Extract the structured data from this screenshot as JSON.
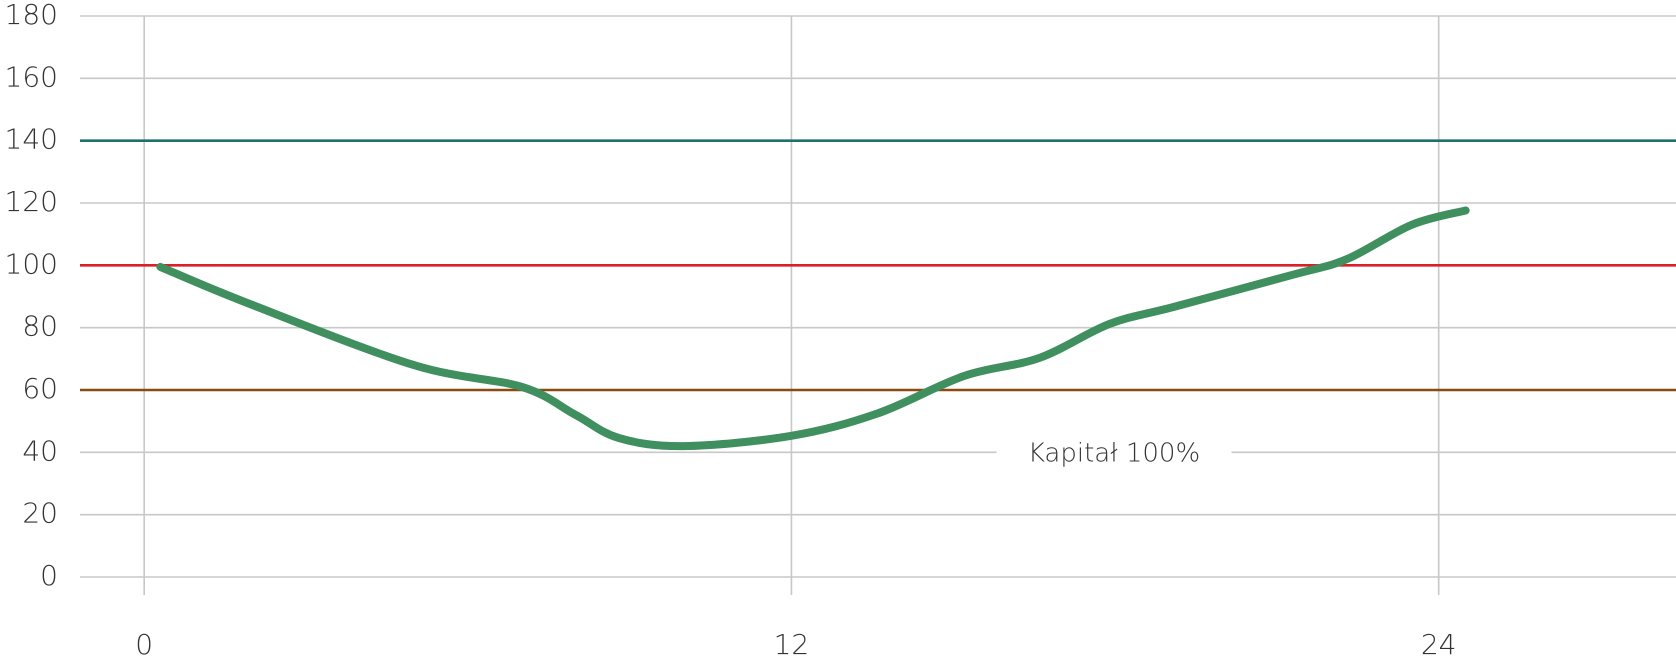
{
  "chart_data": {
    "type": "line",
    "x": [
      0.3,
      1.9,
      5.0,
      7.0,
      8.0,
      8.8,
      10.0,
      12.0,
      13.6,
      15.2,
      16.6,
      17.9,
      19.1,
      21.3,
      22.3,
      23.5,
      24.5
    ],
    "series": [
      {
        "color": "#3f8f5f",
        "values": [
          99.5,
          88,
          68,
          61,
          52,
          44.6,
          42,
          45.3,
          52.5,
          64.5,
          70.3,
          81.2,
          86.7,
          97,
          102,
          113,
          117.6
        ]
      }
    ],
    "reference_lines": [
      {
        "value": 140,
        "color": "#1f6f6a"
      },
      {
        "value": 100,
        "color": "#d9202a"
      },
      {
        "value": 60,
        "color": "#8b4a10"
      }
    ],
    "annotation": "Kapitał 100%",
    "xlim": [
      -1.19,
      28.4
    ],
    "xticks": [
      0,
      12,
      24
    ],
    "ylim": [
      0,
      180
    ],
    "yticks": [
      0,
      20,
      40,
      60,
      80,
      100,
      120,
      140,
      160,
      180
    ],
    "grid": true
  }
}
